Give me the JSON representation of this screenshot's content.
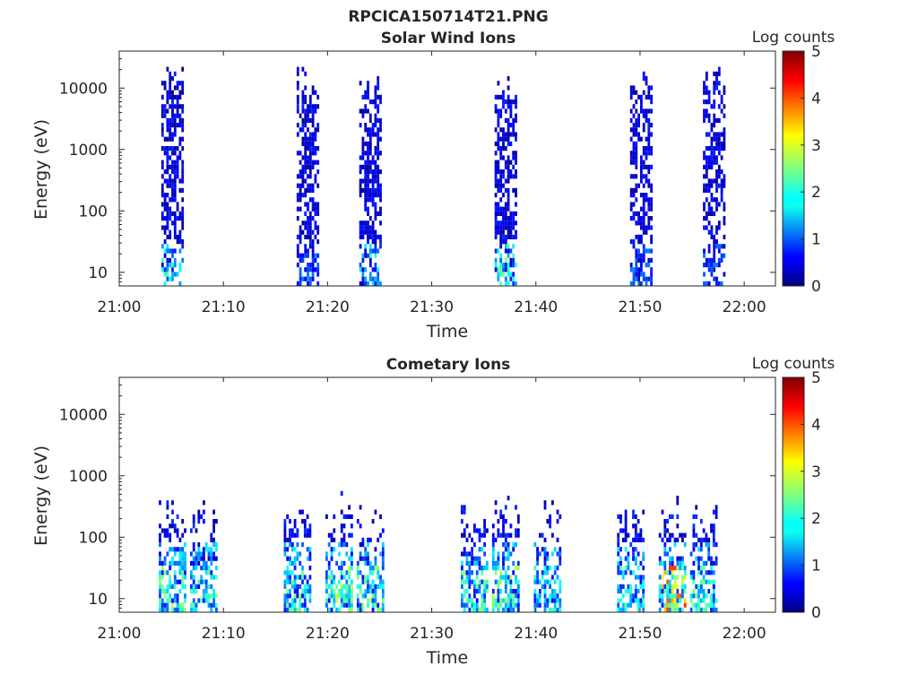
{
  "figure_title": "RPCICA150714T21.PNG",
  "colors": {
    "empty": "#ffffff",
    "axis": "#262626"
  },
  "chart_data": [
    {
      "type": "heatmap",
      "title": "Solar Wind Ions",
      "xlabel": "Time",
      "ylabel": "Energy (eV)",
      "y_scale": "log",
      "xlim": [
        "21:00",
        "22:03"
      ],
      "ylim": [
        6,
        40000
      ],
      "x_ticks": [
        "21:00",
        "21:10",
        "21:20",
        "21:30",
        "21:40",
        "21:50",
        "22:00"
      ],
      "y_ticks": [
        "10",
        "100",
        "1000",
        "10000"
      ],
      "colorbar": {
        "label": "Log counts",
        "range": [
          0,
          5
        ],
        "ticks": [
          "0",
          "1",
          "2",
          "3",
          "4",
          "5"
        ],
        "colormap": "jet"
      },
      "grid": false,
      "bursts": [
        {
          "center_time": "21:05",
          "log_counts_peak": 2.0
        },
        {
          "center_time": "21:18",
          "log_counts_peak": 1.0
        },
        {
          "center_time": "21:24",
          "log_counts_peak": 1.8
        },
        {
          "center_time": "21:37",
          "log_counts_peak": 2.2
        },
        {
          "center_time": "21:50",
          "log_counts_peak": 1.0
        },
        {
          "center_time": "21:57",
          "log_counts_peak": 1.0
        }
      ]
    },
    {
      "type": "heatmap",
      "title": "Cometary Ions",
      "xlabel": "Time",
      "ylabel": "Energy (eV)",
      "y_scale": "log",
      "xlim": [
        "21:00",
        "22:03"
      ],
      "ylim": [
        6,
        40000
      ],
      "x_ticks": [
        "21:00",
        "21:10",
        "21:20",
        "21:30",
        "21:40",
        "21:50",
        "22:00"
      ],
      "y_ticks": [
        "10",
        "100",
        "1000",
        "10000"
      ],
      "colorbar": {
        "label": "Log counts",
        "range": [
          0,
          5
        ],
        "ticks": [
          "0",
          "1",
          "2",
          "3",
          "4",
          "5"
        ],
        "colormap": "jet"
      },
      "grid": false,
      "bursts": [
        {
          "center_time": "21:05",
          "log_counts_peak": 2.8
        },
        {
          "center_time": "21:08",
          "log_counts_peak": 2.6
        },
        {
          "center_time": "21:17",
          "log_counts_peak": 2.6
        },
        {
          "center_time": "21:21",
          "log_counts_peak": 2.9
        },
        {
          "center_time": "21:24",
          "log_counts_peak": 2.7
        },
        {
          "center_time": "21:34",
          "log_counts_peak": 2.6
        },
        {
          "center_time": "21:37",
          "log_counts_peak": 2.8
        },
        {
          "center_time": "21:41",
          "log_counts_peak": 2.2
        },
        {
          "center_time": "21:49",
          "log_counts_peak": 2.4
        },
        {
          "center_time": "21:53",
          "log_counts_peak": 4.2
        },
        {
          "center_time": "21:56",
          "log_counts_peak": 2.6
        }
      ]
    }
  ]
}
